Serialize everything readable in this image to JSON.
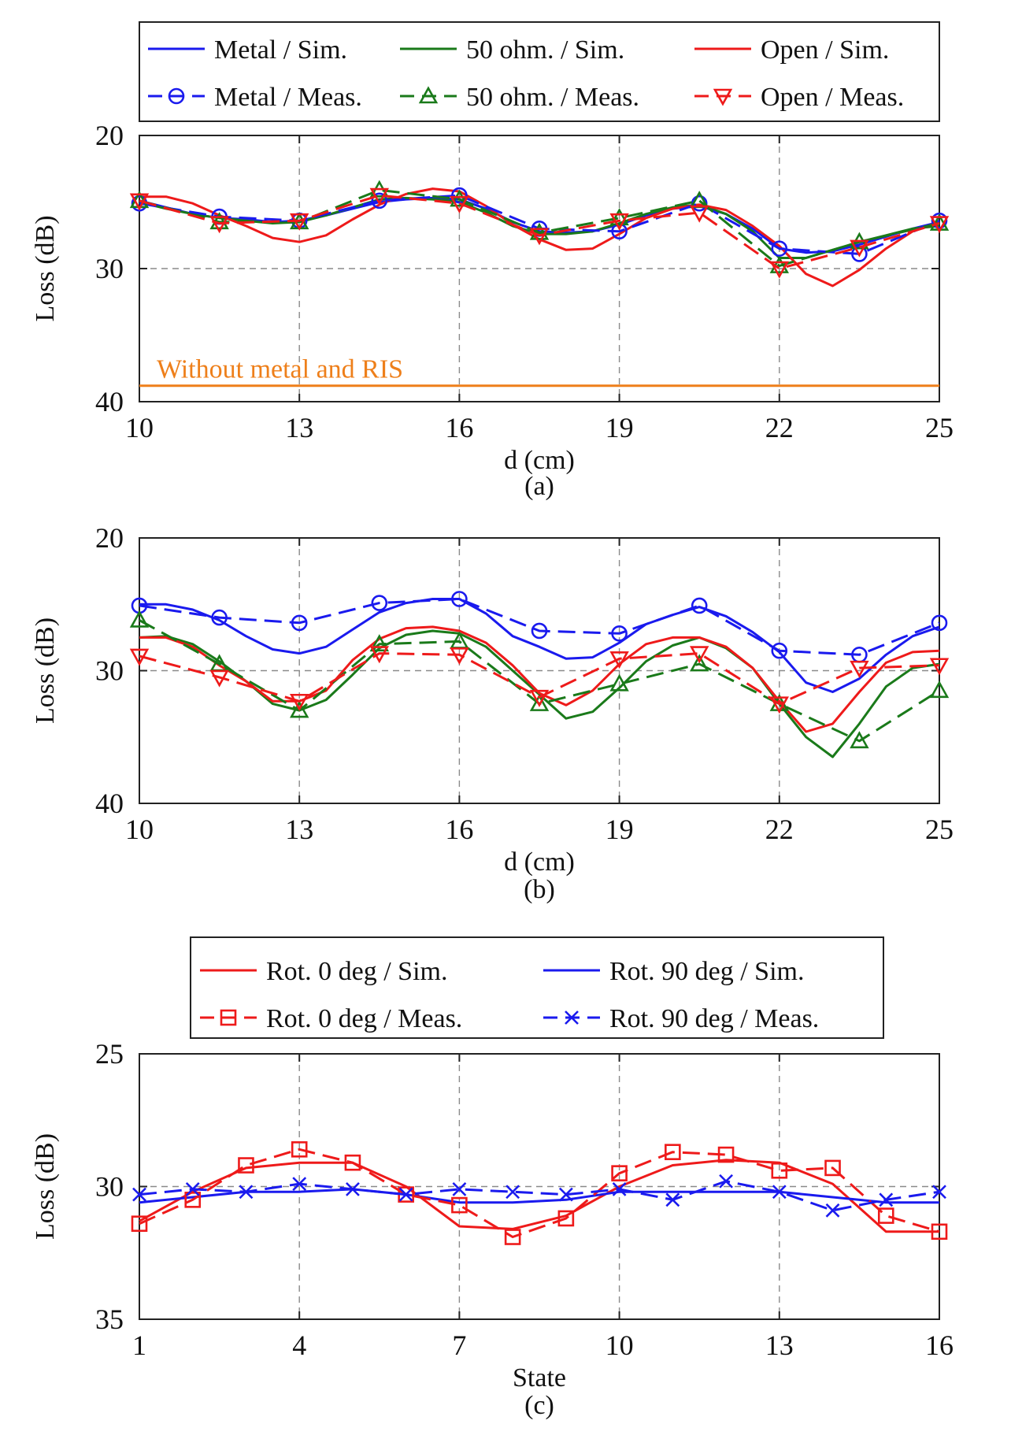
{
  "colors": {
    "blue": "#1a1aee",
    "green": "#1a7a1a",
    "red": "#ee1a1a",
    "orange": "#ee7f1a",
    "axis": "#222222",
    "grid": "#8a8a8a"
  },
  "chart_data": [
    {
      "type": "line",
      "caption": "(a)",
      "xlabel": "d (cm)",
      "ylabel": "Loss (dB)",
      "xlim": [
        10,
        25
      ],
      "ylim": [
        40,
        20
      ],
      "y_reversed": true,
      "xticks": [
        "10",
        "13",
        "16",
        "19",
        "22",
        "25"
      ],
      "yticks": [
        "20",
        "30",
        "40"
      ],
      "grid": true,
      "legend": {
        "placement": "top",
        "columns": 3,
        "entries": [
          "Metal / Sim.",
          "50 ohm. / Sim.",
          "Open / Sim.",
          "Metal / Meas.",
          "50 ohm. / Meas.",
          "Open / Meas."
        ]
      },
      "annotation": {
        "text": "Without metal and RIS",
        "y": 38.8
      },
      "series": [
        {
          "name": "Metal / Sim.",
          "color": "blue",
          "style": "solid",
          "marker": "none",
          "x": [
            10,
            10.5,
            11,
            11.5,
            12,
            12.5,
            13,
            13.5,
            14,
            14.5,
            15,
            15.5,
            16,
            16.5,
            17,
            17.5,
            18,
            18.5,
            19,
            19.5,
            20,
            20.5,
            21,
            21.5,
            22,
            22.5,
            23,
            23.5,
            24,
            24.5,
            25
          ],
          "y": [
            24.9,
            25.4,
            25.9,
            26.2,
            26.3,
            26.5,
            26.4,
            26.0,
            25.5,
            25.0,
            24.8,
            24.7,
            24.8,
            25.5,
            26.5,
            27.2,
            27.3,
            27.2,
            26.7,
            26.0,
            25.5,
            25.3,
            25.9,
            27.0,
            28.5,
            28.8,
            28.7,
            28.2,
            27.6,
            27.0,
            26.5
          ]
        },
        {
          "name": "50 ohm. / Sim.",
          "color": "green",
          "style": "solid",
          "marker": "none",
          "x": [
            10,
            10.5,
            11,
            11.5,
            12,
            12.5,
            13,
            13.5,
            14,
            14.5,
            15,
            15.5,
            16,
            16.5,
            17,
            17.5,
            18,
            18.5,
            19,
            19.5,
            20,
            20.5,
            21,
            21.5,
            22,
            22.5,
            23,
            23.5,
            24,
            24.5,
            25
          ],
          "y": [
            25.0,
            25.5,
            25.9,
            26.2,
            26.4,
            26.6,
            26.5,
            26.0,
            25.4,
            24.8,
            24.7,
            24.8,
            25.0,
            25.8,
            26.8,
            27.4,
            27.4,
            27.2,
            26.6,
            25.9,
            25.4,
            25.2,
            25.9,
            27.2,
            29.2,
            29.2,
            28.6,
            28.0,
            27.5,
            27.0,
            26.8
          ]
        },
        {
          "name": "Open / Sim.",
          "color": "red",
          "style": "solid",
          "marker": "none",
          "x": [
            10,
            10.5,
            11,
            11.5,
            12,
            12.5,
            13,
            13.5,
            14,
            14.5,
            15,
            15.5,
            16,
            16.5,
            17,
            17.5,
            18,
            18.5,
            19,
            19.5,
            20,
            20.5,
            21,
            21.5,
            22,
            22.5,
            23,
            23.5,
            24,
            24.5,
            25
          ],
          "y": [
            24.6,
            24.6,
            25.1,
            26.0,
            26.8,
            27.7,
            28.0,
            27.5,
            26.3,
            25.2,
            24.4,
            24.0,
            24.2,
            25.3,
            26.7,
            27.8,
            28.6,
            28.5,
            27.4,
            26.2,
            25.5,
            25.2,
            25.6,
            26.8,
            28.3,
            30.4,
            31.3,
            30.1,
            28.5,
            27.2,
            26.5
          ]
        },
        {
          "name": "Metal / Meas.",
          "color": "blue",
          "style": "dashed",
          "marker": "circle",
          "x": [
            10,
            11.5,
            13,
            14.5,
            16,
            17.5,
            19,
            20.5,
            22,
            23.5,
            25
          ],
          "y": [
            25.1,
            26.1,
            26.4,
            24.9,
            24.5,
            27.0,
            27.2,
            25.1,
            28.5,
            28.9,
            26.4
          ]
        },
        {
          "name": "50 ohm. / Meas.",
          "color": "green",
          "style": "dashed",
          "marker": "triangle-up",
          "x": [
            10,
            11.5,
            13,
            14.5,
            16,
            17.5,
            19,
            20.5,
            22,
            23.5,
            25
          ],
          "y": [
            24.9,
            26.5,
            26.5,
            24.1,
            24.8,
            27.3,
            26.2,
            24.9,
            29.8,
            28.0,
            26.6
          ]
        },
        {
          "name": "Open / Meas.",
          "color": "red",
          "style": "dashed",
          "marker": "triangle-down",
          "x": [
            10,
            11.5,
            13,
            14.5,
            16,
            17.5,
            19,
            20.5,
            22,
            23.5,
            25
          ],
          "y": [
            24.9,
            26.6,
            26.4,
            24.5,
            25.1,
            27.5,
            26.4,
            25.8,
            30.0,
            28.4,
            26.6
          ]
        },
        {
          "name": "Without metal and RIS",
          "color": "orange",
          "style": "solid",
          "marker": "none",
          "x": [
            10,
            25
          ],
          "y": [
            38.8,
            38.8
          ]
        }
      ]
    },
    {
      "type": "line",
      "caption": "(b)",
      "xlabel": "d (cm)",
      "ylabel": "Loss (dB)",
      "xlim": [
        10,
        25
      ],
      "ylim": [
        40,
        20
      ],
      "y_reversed": true,
      "xticks": [
        "10",
        "13",
        "16",
        "19",
        "22",
        "25"
      ],
      "yticks": [
        "20",
        "30",
        "40"
      ],
      "grid": true,
      "series": [
        {
          "name": "Metal / Sim.",
          "color": "blue",
          "style": "solid",
          "marker": "none",
          "x": [
            10,
            10.5,
            11,
            11.5,
            12,
            12.5,
            13,
            13.5,
            14,
            14.5,
            15,
            15.5,
            16,
            16.5,
            17,
            17.5,
            18,
            18.5,
            19,
            19.5,
            20,
            20.5,
            21,
            21.5,
            22,
            22.5,
            23,
            23.5,
            24,
            24.5,
            25
          ],
          "y": [
            25.0,
            25.0,
            25.4,
            26.2,
            27.4,
            28.4,
            28.7,
            28.2,
            26.9,
            25.6,
            24.9,
            24.6,
            24.6,
            25.7,
            27.4,
            28.2,
            29.1,
            29.0,
            27.9,
            26.5,
            25.8,
            25.2,
            25.9,
            27.1,
            28.6,
            30.9,
            31.6,
            30.6,
            28.8,
            27.4,
            26.7
          ]
        },
        {
          "name": "50 ohm. / Sim.",
          "color": "green",
          "style": "solid",
          "marker": "none",
          "x": [
            10,
            10.5,
            11,
            11.5,
            12,
            12.5,
            13,
            13.5,
            14,
            14.5,
            15,
            15.5,
            16,
            16.5,
            17,
            17.5,
            18,
            18.5,
            19,
            19.5,
            20,
            20.5,
            21,
            21.5,
            22,
            22.5,
            23,
            23.5,
            24,
            24.5,
            25
          ],
          "y": [
            27.5,
            27.4,
            28.0,
            29.3,
            30.8,
            32.5,
            33.0,
            32.2,
            30.3,
            28.3,
            27.3,
            27.0,
            27.2,
            28.2,
            30.0,
            31.8,
            33.6,
            33.1,
            31.3,
            29.3,
            28.1,
            27.5,
            28.3,
            29.8,
            32.5,
            35.0,
            36.5,
            34.0,
            31.2,
            29.8,
            29.5
          ]
        },
        {
          "name": "Open / Sim.",
          "color": "red",
          "style": "solid",
          "marker": "none",
          "x": [
            10,
            10.5,
            11,
            11.5,
            12,
            12.5,
            13,
            13.5,
            14,
            14.5,
            15,
            15.5,
            16,
            16.5,
            17,
            17.5,
            18,
            18.5,
            19,
            19.5,
            20,
            20.5,
            21,
            21.5,
            22,
            22.5,
            23,
            23.5,
            24,
            24.5,
            25
          ],
          "y": [
            27.5,
            27.5,
            28.2,
            29.6,
            30.8,
            32.3,
            32.3,
            31.5,
            29.2,
            27.6,
            26.8,
            26.7,
            27.0,
            27.9,
            29.6,
            31.7,
            32.6,
            31.5,
            29.5,
            28.0,
            27.5,
            27.5,
            28.2,
            29.8,
            32.3,
            34.6,
            34.0,
            31.6,
            29.4,
            28.6,
            28.5
          ]
        },
        {
          "name": "Metal / Meas.",
          "color": "blue",
          "style": "dashed",
          "marker": "circle",
          "x": [
            10,
            11.5,
            13,
            14.5,
            16,
            17.5,
            19,
            20.5,
            22,
            23.5,
            25
          ],
          "y": [
            25.1,
            26.0,
            26.4,
            24.9,
            24.6,
            27.0,
            27.2,
            25.1,
            28.5,
            28.8,
            26.4
          ]
        },
        {
          "name": "50 ohm. / Meas.",
          "color": "green",
          "style": "dashed",
          "marker": "triangle-up",
          "x": [
            10,
            11.5,
            13,
            14.5,
            16,
            17.5,
            19,
            20.5,
            22,
            23.5,
            25
          ],
          "y": [
            26.2,
            29.5,
            33.0,
            28.0,
            27.8,
            32.5,
            31.0,
            29.5,
            32.5,
            35.3,
            31.5
          ]
        },
        {
          "name": "Open / Meas.",
          "color": "red",
          "style": "dashed",
          "marker": "triangle-down",
          "x": [
            10,
            11.5,
            13,
            14.5,
            16,
            17.5,
            19,
            20.5,
            22,
            23.5,
            25
          ],
          "y": [
            28.9,
            30.5,
            32.3,
            28.7,
            28.8,
            32.0,
            29.1,
            28.7,
            32.5,
            29.8,
            29.6
          ]
        }
      ]
    },
    {
      "type": "line",
      "caption": "(c)",
      "xlabel": "State",
      "ylabel": "Loss (dB)",
      "xlim": [
        1,
        16
      ],
      "ylim": [
        35,
        25
      ],
      "y_reversed": true,
      "xticks": [
        "1",
        "4",
        "7",
        "10",
        "13",
        "16"
      ],
      "yticks": [
        "25",
        "30",
        "35"
      ],
      "grid": true,
      "legend": {
        "placement": "top",
        "columns": 2,
        "entries": [
          "Rot. 0 deg / Sim.",
          "Rot. 90 deg / Sim.",
          "Rot. 0 deg / Meas.",
          "Rot. 90 deg / Meas."
        ]
      },
      "series": [
        {
          "name": "Rot. 0 deg / Sim.",
          "color": "red",
          "style": "solid",
          "marker": "none",
          "x": [
            1,
            2,
            3,
            4,
            5,
            6,
            7,
            8,
            9,
            10,
            11,
            12,
            13,
            14,
            15,
            16
          ],
          "y": [
            31.3,
            30.2,
            29.3,
            29.1,
            29.1,
            30.0,
            31.5,
            31.6,
            31.1,
            30.0,
            29.2,
            29.0,
            29.1,
            29.9,
            31.7,
            31.7
          ]
        },
        {
          "name": "Rot. 90 deg / Sim.",
          "color": "blue",
          "style": "solid",
          "marker": "none",
          "x": [
            1,
            2,
            3,
            4,
            5,
            6,
            7,
            8,
            9,
            10,
            11,
            12,
            13,
            14,
            15,
            16
          ],
          "y": [
            30.6,
            30.4,
            30.2,
            30.2,
            30.1,
            30.3,
            30.6,
            30.6,
            30.5,
            30.2,
            30.2,
            30.2,
            30.2,
            30.4,
            30.6,
            30.6
          ]
        },
        {
          "name": "Rot. 0 deg / Meas.",
          "color": "red",
          "style": "dashed",
          "marker": "square",
          "x": [
            1,
            2,
            3,
            4,
            5,
            6,
            7,
            8,
            9,
            10,
            11,
            12,
            13,
            14,
            15,
            16
          ],
          "y": [
            31.4,
            30.5,
            29.2,
            28.6,
            29.1,
            30.3,
            30.7,
            31.9,
            31.2,
            29.5,
            28.7,
            28.8,
            29.4,
            29.3,
            31.1,
            31.7
          ]
        },
        {
          "name": "Rot. 90 deg / Meas.",
          "color": "blue",
          "style": "dashed",
          "marker": "x",
          "x": [
            1,
            2,
            3,
            4,
            5,
            6,
            7,
            8,
            9,
            10,
            11,
            12,
            13,
            14,
            15,
            16
          ],
          "y": [
            30.3,
            30.1,
            30.2,
            29.9,
            30.1,
            30.3,
            30.1,
            30.2,
            30.3,
            30.1,
            30.5,
            29.8,
            30.2,
            30.9,
            30.5,
            30.2
          ]
        }
      ]
    }
  ]
}
